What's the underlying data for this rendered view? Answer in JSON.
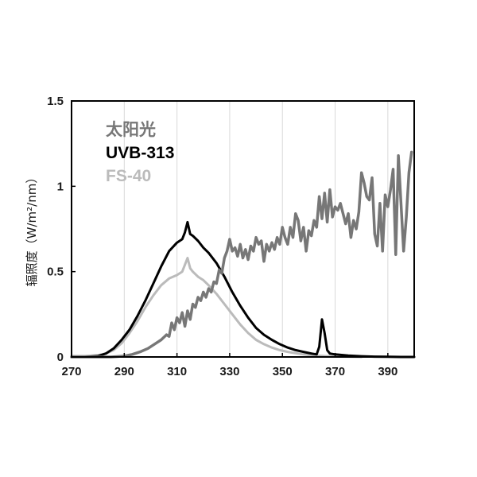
{
  "chart_data": {
    "type": "line",
    "title": "",
    "xlabel": "",
    "ylabel": "辐照度（W/m²/nm）",
    "xlim": [
      270,
      400
    ],
    "ylim": [
      0,
      1.5
    ],
    "x_ticks": [
      "270",
      "290",
      "310",
      "330",
      "350",
      "370",
      "390"
    ],
    "y_ticks": [
      "0",
      "0.5",
      "1",
      "1.5"
    ],
    "grid": "vertical",
    "legend_position": "top-left",
    "series": [
      {
        "name": "太阳光",
        "color": "#777777",
        "x": [
          270,
          285,
          290,
          293,
          296,
          299,
          302,
          304,
          306,
          307,
          308,
          309,
          310,
          311,
          312,
          313,
          314,
          315,
          316,
          317,
          318,
          319,
          320,
          321,
          322,
          323,
          324,
          325,
          326,
          327,
          328,
          329,
          330,
          331,
          332,
          333,
          334,
          335,
          336,
          337,
          338,
          339,
          340,
          341,
          342,
          343,
          344,
          345,
          346,
          347,
          348,
          349,
          350,
          351,
          352,
          353,
          354,
          355,
          356,
          357,
          358,
          359,
          360,
          361,
          362,
          363,
          364,
          365,
          366,
          367,
          368,
          369,
          370,
          371,
          372,
          373,
          374,
          375,
          376,
          377,
          378,
          379,
          380,
          381,
          382,
          383,
          384,
          385,
          386,
          387,
          388,
          389,
          390,
          391,
          392,
          393,
          394,
          395,
          396,
          397,
          398,
          399
        ],
        "values": [
          0.0,
          0.0,
          0.005,
          0.015,
          0.03,
          0.05,
          0.08,
          0.1,
          0.13,
          0.12,
          0.2,
          0.16,
          0.23,
          0.2,
          0.26,
          0.18,
          0.27,
          0.22,
          0.31,
          0.29,
          0.35,
          0.33,
          0.38,
          0.35,
          0.4,
          0.38,
          0.44,
          0.43,
          0.51,
          0.49,
          0.58,
          0.62,
          0.69,
          0.62,
          0.64,
          0.59,
          0.66,
          0.58,
          0.63,
          0.57,
          0.65,
          0.62,
          0.7,
          0.66,
          0.68,
          0.56,
          0.66,
          0.62,
          0.67,
          0.63,
          0.7,
          0.66,
          0.76,
          0.7,
          0.66,
          0.76,
          0.7,
          0.84,
          0.8,
          0.68,
          0.76,
          0.62,
          0.74,
          0.71,
          0.8,
          0.76,
          0.94,
          0.81,
          0.96,
          0.79,
          0.98,
          0.82,
          0.88,
          0.86,
          0.9,
          0.84,
          0.78,
          0.84,
          0.7,
          0.8,
          0.75,
          0.85,
          1.08,
          1.02,
          0.94,
          0.92,
          1.05,
          0.72,
          0.65,
          0.9,
          0.62,
          0.95,
          0.88,
          0.98,
          1.1,
          0.6,
          1.18,
          0.9,
          0.62,
          0.82,
          1.08,
          1.2
        ]
      },
      {
        "name": "UVB-313",
        "color": "#000000",
        "x": [
          270,
          275,
          280,
          283,
          286,
          289,
          292,
          295,
          298,
          301,
          304,
          307,
          310,
          312,
          313,
          314,
          315,
          316,
          318,
          320,
          322,
          325,
          328,
          331,
          334,
          337,
          340,
          343,
          346,
          349,
          352,
          355,
          358,
          361,
          363,
          364,
          365,
          366,
          367,
          368,
          370,
          375,
          380,
          385,
          390,
          395,
          400
        ],
        "values": [
          0.0,
          0.0,
          0.005,
          0.02,
          0.05,
          0.1,
          0.16,
          0.24,
          0.33,
          0.43,
          0.53,
          0.62,
          0.67,
          0.69,
          0.73,
          0.79,
          0.72,
          0.71,
          0.68,
          0.64,
          0.61,
          0.55,
          0.47,
          0.38,
          0.3,
          0.23,
          0.17,
          0.13,
          0.1,
          0.075,
          0.055,
          0.04,
          0.03,
          0.02,
          0.015,
          0.06,
          0.22,
          0.14,
          0.04,
          0.02,
          0.015,
          0.008,
          0.004,
          0.002,
          0.001,
          0.0,
          0.0
        ]
      },
      {
        "name": "FS-40",
        "color": "#bbbbbb",
        "x": [
          270,
          275,
          280,
          283,
          286,
          289,
          292,
          295,
          298,
          301,
          304,
          307,
          310,
          312,
          313,
          314,
          315,
          316,
          318,
          320,
          322,
          325,
          328,
          331,
          334,
          337,
          340,
          343,
          346,
          349,
          352,
          355,
          358,
          361,
          364,
          366,
          368,
          370,
          375,
          380
        ],
        "values": [
          0.005,
          0.005,
          0.01,
          0.02,
          0.04,
          0.08,
          0.14,
          0.21,
          0.29,
          0.36,
          0.42,
          0.46,
          0.48,
          0.5,
          0.54,
          0.58,
          0.52,
          0.5,
          0.47,
          0.45,
          0.42,
          0.37,
          0.31,
          0.25,
          0.19,
          0.14,
          0.1,
          0.075,
          0.055,
          0.04,
          0.03,
          0.022,
          0.015,
          0.01,
          0.007,
          0.005,
          0.004,
          0.003,
          0.002,
          0.0
        ]
      }
    ]
  }
}
